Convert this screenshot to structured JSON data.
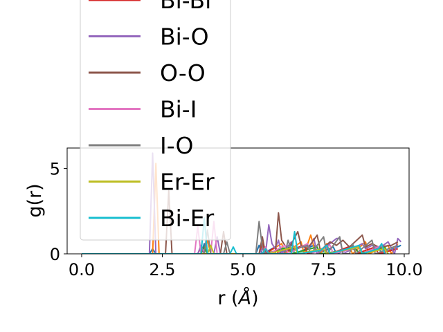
{
  "chart_data": {
    "type": "line",
    "xlabel_main": "r (",
    "xlabel_unit": "Å",
    "xlabel_close": ")",
    "ylabel": "g(r)",
    "xlim": [
      -0.45,
      10.15
    ],
    "ylim": [
      0,
      6.2
    ],
    "x_ticks": [
      {
        "value": 0.0,
        "label": "0.0"
      },
      {
        "value": 2.5,
        "label": "2.5"
      },
      {
        "value": 5.0,
        "label": "5.0"
      },
      {
        "value": 7.5,
        "label": "7.5"
      },
      {
        "value": 10.0,
        "label": "10.0"
      }
    ],
    "y_ticks": [
      {
        "value": 0,
        "label": "0"
      },
      {
        "value": 5,
        "label": "5"
      }
    ],
    "legend_position": "upper-left",
    "legend_entries": [
      {
        "label": "Bi-Bi",
        "color": "#d62728"
      },
      {
        "label": "Bi-O",
        "color": "#9467bd"
      },
      {
        "label": "O-O",
        "color": "#8c564b"
      },
      {
        "label": "Bi-I",
        "color": "#e377c2"
      },
      {
        "label": "I-O",
        "color": "#7f7f7f"
      },
      {
        "label": "Er-Er",
        "color": "#bcbd22"
      },
      {
        "label": "Bi-Er",
        "color": "#17becf"
      }
    ],
    "series": [
      {
        "color": "#1f77b4",
        "points": [
          [
            0,
            0
          ],
          [
            2.1,
            0
          ],
          [
            2.2,
            0.3
          ],
          [
            2.3,
            0
          ],
          [
            3.7,
            0
          ],
          [
            3.8,
            0.6
          ],
          [
            3.9,
            0
          ],
          [
            5.4,
            0
          ],
          [
            5.5,
            0.5
          ],
          [
            5.6,
            0
          ],
          [
            6.0,
            0.4
          ],
          [
            6.1,
            0
          ],
          [
            6.5,
            0.6
          ],
          [
            6.6,
            0
          ],
          [
            7.2,
            0.5
          ],
          [
            7.3,
            0
          ],
          [
            7.8,
            0.4
          ],
          [
            7.9,
            0
          ],
          [
            8.6,
            0.5
          ],
          [
            8.7,
            0
          ],
          [
            9.2,
            0.4
          ],
          [
            9.3,
            0
          ],
          [
            9.9,
            0.5
          ]
        ]
      },
      {
        "color": "#ff7f0e",
        "points": [
          [
            0,
            0
          ],
          [
            2.2,
            0
          ],
          [
            2.3,
            5.3
          ],
          [
            2.4,
            0
          ],
          [
            3.8,
            0
          ],
          [
            3.9,
            0.8
          ],
          [
            4.0,
            0
          ],
          [
            5.5,
            0
          ],
          [
            5.6,
            0.7
          ],
          [
            5.7,
            0
          ],
          [
            6.2,
            0.6
          ],
          [
            6.3,
            0
          ],
          [
            6.8,
            0.7
          ],
          [
            6.9,
            0
          ],
          [
            7.1,
            1.1
          ],
          [
            7.2,
            0.4
          ],
          [
            7.4,
            0
          ],
          [
            7.6,
            0.6
          ],
          [
            7.7,
            0
          ],
          [
            8.3,
            0.4
          ],
          [
            8.4,
            0
          ],
          [
            8.8,
            0.7
          ],
          [
            8.9,
            0
          ],
          [
            9.5,
            0.5
          ],
          [
            9.6,
            0
          ],
          [
            9.8,
            0.6
          ]
        ]
      },
      {
        "color": "#2ca02c",
        "points": [
          [
            0,
            0
          ],
          [
            3.7,
            0
          ],
          [
            3.8,
            0.4
          ],
          [
            3.9,
            0
          ],
          [
            5.5,
            0
          ],
          [
            5.6,
            0.3
          ],
          [
            5.7,
            0
          ],
          [
            6.4,
            0.4
          ],
          [
            6.5,
            0
          ],
          [
            7.3,
            0.4
          ],
          [
            7.4,
            0
          ],
          [
            8.5,
            0.3
          ],
          [
            8.6,
            0
          ],
          [
            9.4,
            0.4
          ],
          [
            9.5,
            0
          ]
        ]
      },
      {
        "color": "#d62728",
        "points": [
          [
            0,
            0
          ],
          [
            3.6,
            0
          ],
          [
            3.7,
            0.4
          ],
          [
            3.8,
            0
          ],
          [
            5.5,
            0
          ],
          [
            5.6,
            0.6
          ],
          [
            5.7,
            0
          ],
          [
            6.0,
            0.4
          ],
          [
            6.1,
            0
          ],
          [
            6.9,
            0.5
          ],
          [
            7.0,
            0
          ],
          [
            7.6,
            0.4
          ],
          [
            7.7,
            0
          ],
          [
            8.4,
            0.5
          ],
          [
            8.5,
            0
          ],
          [
            9.1,
            0.4
          ],
          [
            9.2,
            0
          ],
          [
            9.8,
            0.3
          ]
        ]
      },
      {
        "color": "#9467bd",
        "points": [
          [
            0,
            0
          ],
          [
            2.1,
            0
          ],
          [
            2.2,
            5.9
          ],
          [
            2.3,
            0
          ],
          [
            3.6,
            0
          ],
          [
            3.7,
            0.5
          ],
          [
            3.8,
            0
          ],
          [
            4.1,
            0
          ],
          [
            4.2,
            1.0
          ],
          [
            4.3,
            0
          ],
          [
            5.5,
            0
          ],
          [
            5.6,
            0.3
          ],
          [
            5.7,
            0
          ],
          [
            5.8,
            1.7
          ],
          [
            5.9,
            0.6
          ],
          [
            6.0,
            0.3
          ],
          [
            6.1,
            0.8
          ],
          [
            6.2,
            0
          ],
          [
            6.5,
            0.7
          ],
          [
            6.6,
            0.3
          ],
          [
            7.1,
            0.5
          ],
          [
            7.2,
            0.9
          ],
          [
            7.3,
            0
          ],
          [
            7.7,
            0.6
          ],
          [
            7.9,
            0.9
          ],
          [
            8.0,
            0.9
          ],
          [
            8.1,
            0
          ],
          [
            8.7,
            0.6
          ],
          [
            8.8,
            0.3
          ],
          [
            9.0,
            0.5
          ],
          [
            9.2,
            0.3
          ],
          [
            9.5,
            0.7
          ],
          [
            9.7,
            0
          ],
          [
            9.8,
            0.9
          ],
          [
            9.9,
            0.7
          ]
        ]
      },
      {
        "color": "#8c564b",
        "points": [
          [
            0,
            0
          ],
          [
            2.6,
            0
          ],
          [
            2.7,
            3.7
          ],
          [
            2.8,
            0
          ],
          [
            4.3,
            0
          ],
          [
            4.4,
            1.3
          ],
          [
            4.5,
            0
          ],
          [
            5.5,
            0
          ],
          [
            5.6,
            1.0
          ],
          [
            5.7,
            0
          ],
          [
            6.0,
            0
          ],
          [
            6.1,
            2.4
          ],
          [
            6.2,
            0.8
          ],
          [
            6.4,
            0.2
          ],
          [
            6.7,
            1.3
          ],
          [
            6.8,
            0.5
          ],
          [
            7.0,
            0.3
          ],
          [
            7.3,
            1.1
          ],
          [
            7.4,
            0.2
          ],
          [
            7.7,
            0.7
          ],
          [
            7.9,
            0.5
          ],
          [
            8.1,
            0.8
          ],
          [
            8.3,
            0.4
          ],
          [
            8.7,
            1.1
          ],
          [
            8.8,
            0.4
          ],
          [
            9.0,
            0.6
          ],
          [
            9.2,
            0.4
          ],
          [
            9.6,
            0.5
          ],
          [
            9.8,
            0.7
          ]
        ]
      },
      {
        "color": "#e377c2",
        "points": [
          [
            0,
            0
          ],
          [
            3.5,
            0
          ],
          [
            3.6,
            1.6
          ],
          [
            3.7,
            0
          ],
          [
            4.0,
            0
          ],
          [
            4.1,
            1.9
          ],
          [
            4.2,
            0
          ],
          [
            5.6,
            0
          ],
          [
            5.7,
            0.4
          ],
          [
            5.8,
            0
          ],
          [
            6.3,
            0.5
          ],
          [
            6.4,
            0
          ],
          [
            7.0,
            0.6
          ],
          [
            7.1,
            0
          ],
          [
            7.7,
            0.5
          ],
          [
            7.8,
            0
          ],
          [
            8.6,
            0.4
          ],
          [
            8.7,
            0
          ],
          [
            9.3,
            0.5
          ],
          [
            9.4,
            0
          ]
        ]
      },
      {
        "color": "#7f7f7f",
        "points": [
          [
            0,
            0
          ],
          [
            3.8,
            0
          ],
          [
            3.9,
            1.4
          ],
          [
            4.0,
            0
          ],
          [
            4.4,
            0
          ],
          [
            4.5,
            0.7
          ],
          [
            4.6,
            0
          ],
          [
            5.4,
            0
          ],
          [
            5.5,
            1.9
          ],
          [
            5.6,
            0.4
          ],
          [
            5.7,
            0
          ],
          [
            6.3,
            0
          ],
          [
            6.4,
            0.8
          ],
          [
            6.5,
            0.2
          ],
          [
            7.0,
            0.5
          ],
          [
            7.1,
            0
          ],
          [
            7.5,
            1.0
          ],
          [
            7.6,
            0
          ],
          [
            8.0,
            1.0
          ],
          [
            8.1,
            0
          ],
          [
            8.3,
            0
          ],
          [
            8.4,
            0.6
          ],
          [
            8.5,
            0
          ],
          [
            9.0,
            0.8
          ],
          [
            9.1,
            0
          ],
          [
            9.8,
            0.5
          ]
        ]
      },
      {
        "color": "#bcbd22",
        "points": [
          [
            0,
            0
          ],
          [
            3.9,
            0
          ],
          [
            4.0,
            0.5
          ],
          [
            4.1,
            0
          ],
          [
            5.6,
            0
          ],
          [
            5.7,
            0.3
          ],
          [
            5.8,
            0
          ],
          [
            6.6,
            0.4
          ],
          [
            6.7,
            0
          ],
          [
            7.5,
            0.3
          ],
          [
            7.6,
            0
          ],
          [
            8.6,
            0.4
          ],
          [
            8.7,
            0
          ],
          [
            9.4,
            0.3
          ],
          [
            9.5,
            0
          ]
        ]
      },
      {
        "color": "#17becf",
        "points": [
          [
            0,
            0
          ],
          [
            3.7,
            0
          ],
          [
            3.8,
            2.1
          ],
          [
            3.9,
            0
          ],
          [
            4.6,
            0
          ],
          [
            4.7,
            0.4
          ],
          [
            4.8,
            0
          ],
          [
            5.6,
            0
          ],
          [
            5.7,
            0.3
          ],
          [
            5.8,
            0
          ],
          [
            6.5,
            0
          ],
          [
            6.6,
            1.3
          ],
          [
            6.7,
            0
          ],
          [
            7.4,
            0.2
          ],
          [
            7.6,
            0.5
          ],
          [
            7.7,
            0
          ],
          [
            8.6,
            0.5
          ],
          [
            8.7,
            0
          ],
          [
            9.2,
            0.3
          ],
          [
            9.3,
            0.6
          ],
          [
            9.4,
            0
          ]
        ]
      }
    ]
  }
}
